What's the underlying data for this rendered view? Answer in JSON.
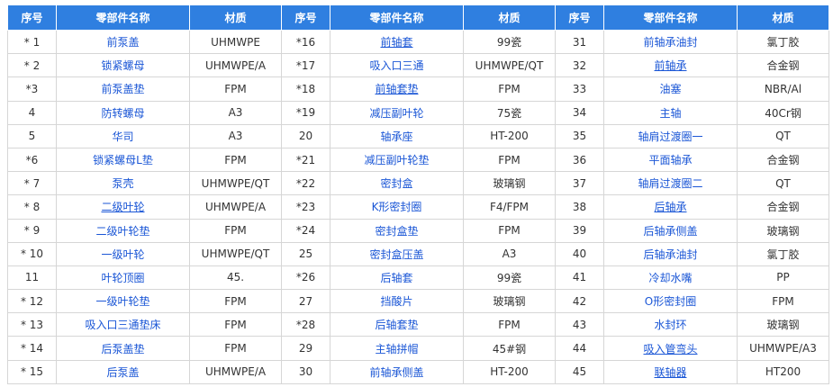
{
  "table": {
    "header": [
      "序号",
      "零部件名称",
      "材质",
      "序号",
      "零部件名称",
      "材质",
      "序号",
      "零部件名称",
      "材质"
    ],
    "rows": [
      [
        "* 1",
        "前泵盖",
        "UHMWPE",
        "*16",
        "前轴套",
        "99瓷",
        "31",
        "前轴承油封",
        "氯丁胶"
      ],
      [
        "* 2",
        "锁紧螺母",
        "UHMWPE/A",
        "*17",
        "吸入口三通",
        "UHMWPE/QT",
        "32",
        "前轴承",
        "合金钢"
      ],
      [
        "*3",
        "前泵盖垫",
        "FPM",
        "*18",
        "前轴套垫",
        "FPM",
        "33",
        "油塞",
        "NBR/Al"
      ],
      [
        "4",
        "防转螺母",
        "A3",
        "*19",
        "减压副叶轮",
        "75瓷",
        "34",
        "主轴",
        "40Cr钢"
      ],
      [
        "5",
        "华司",
        "A3",
        "20",
        "轴承座",
        "HT-200",
        "35",
        "轴肩过渡圈一",
        "QT"
      ],
      [
        "*6",
        "锁紧螺母L垫",
        "FPM",
        "*21",
        "减压副叶轮垫",
        "FPM",
        "36",
        "平面轴承",
        "合金钢"
      ],
      [
        "* 7",
        "泵壳",
        "UHMWPE/QT",
        "*22",
        "密封盒",
        "玻璃钢",
        "37",
        "轴肩过渡圈二",
        "QT"
      ],
      [
        "* 8",
        "二级叶轮",
        "UHMWPE/A",
        "*23",
        "K形密封圈",
        "F4/FPM",
        "38",
        "后轴承",
        "合金钢"
      ],
      [
        "* 9",
        "二级叶轮垫",
        "FPM",
        "*24",
        "密封盒垫",
        "FPM",
        "39",
        "后轴承侧盖",
        "玻璃钢"
      ],
      [
        "* 10",
        "一级叶轮",
        "UHMWPE/QT",
        "25",
        "密封盒压盖",
        "A3",
        "40",
        "后轴承油封",
        "氯丁胶"
      ],
      [
        "11",
        "叶轮顶圈",
        "45.",
        "*26",
        "后轴套",
        "99瓷",
        "41",
        "冷却水嘴",
        "PP"
      ],
      [
        "* 12",
        "一级叶轮垫",
        "FPM",
        "27",
        "挡酸片",
        "玻璃钢",
        "42",
        "O形密封圈",
        "FPM"
      ],
      [
        "* 13",
        "吸入口三通垫床",
        "FPM",
        "*28",
        "后轴套垫",
        "FPM",
        "43",
        "水封环",
        "玻璃钢"
      ],
      [
        "* 14",
        "后泵盖垫",
        "FPM",
        "29",
        "主轴拼帽",
        "45#钢",
        "44",
        "吸入管弯头",
        "UHMWPE/A3"
      ],
      [
        "* 15",
        "后泵盖",
        "UHMWPE/A",
        "30",
        "前轴承侧盖",
        "HT-200",
        "45",
        "联轴器",
        "HT200"
      ]
    ],
    "underlined": [
      [
        0,
        4
      ],
      [
        1,
        7
      ],
      [
        2,
        4
      ],
      [
        7,
        1
      ],
      [
        7,
        7
      ],
      [
        13,
        7
      ],
      [
        14,
        7
      ]
    ]
  }
}
